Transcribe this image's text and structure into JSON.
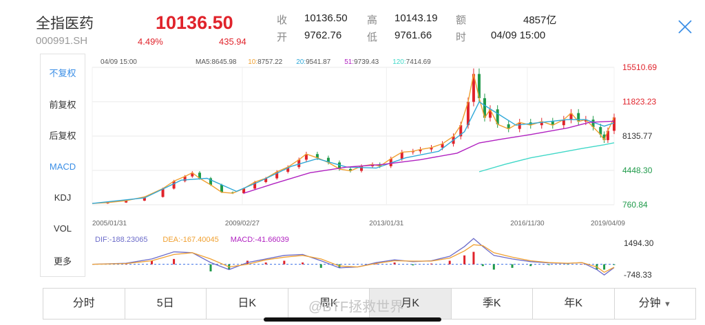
{
  "header": {
    "name": "全指医药",
    "code": "000991.SH",
    "price": "10136.50",
    "pct": "4.49%",
    "change": "435.94",
    "fields": [
      {
        "label": "收",
        "value": "10136.50"
      },
      {
        "label": "高",
        "value": "10143.19"
      },
      {
        "label": "额",
        "value": "4857亿"
      },
      {
        "label": "开",
        "value": "9762.76"
      },
      {
        "label": "低",
        "value": "9761.66"
      },
      {
        "label": "时",
        "value": "04/09 15:00"
      }
    ]
  },
  "side_menu": [
    "不复权",
    "前复权",
    "后复权",
    "MACD",
    "KDJ",
    "VOL",
    "更多"
  ],
  "tabs": [
    "分时",
    "5日",
    "日K",
    "周K",
    "月K",
    "季K",
    "年K",
    "分钟"
  ],
  "watermark": "@BTF拯救世界",
  "colors": {
    "up": "#e0232b",
    "down": "#1f9a4a",
    "accent": "#3a8ee6",
    "ma5": "#6b6bc9",
    "ma10": "#f0a030",
    "ma20": "#2fa8d8",
    "ma51": "#b020c0",
    "ma120": "#40d8c8"
  },
  "chart_data": {
    "type": "line",
    "date_text": "04/09 15:00",
    "ma_legend": [
      {
        "label": "MA5:",
        "value": "8645.98",
        "color": "#555555"
      },
      {
        "label": "10:",
        "value": "8757.22",
        "color": "#f0a030"
      },
      {
        "label": "20:",
        "value": "9541.87",
        "color": "#2fa8d8"
      },
      {
        "label": "51:",
        "value": "9739.43",
        "color": "#b020c0"
      },
      {
        "label": "120:",
        "value": "7414.69",
        "color": "#40d8c8"
      }
    ],
    "y_ticks": [
      {
        "label": "15510.69",
        "value": 15510.69,
        "color": "#e0232b"
      },
      {
        "label": "11823.23",
        "value": 11823.23,
        "color": "#e0232b"
      },
      {
        "label": "8135.77",
        "value": 8135.77,
        "color": "#333333"
      },
      {
        "label": "4448.30",
        "value": 4448.3,
        "color": "#1f9a4a"
      },
      {
        "label": "760.84",
        "value": 760.84,
        "color": "#1f9a4a"
      }
    ],
    "ylim": [
      760.84,
      15510.69
    ],
    "xlim": [
      2005.08,
      2019.27
    ],
    "x_ticks": [
      {
        "label": "2005/01/31",
        "value": 2005.08
      },
      {
        "label": "2009/02/27",
        "value": 2009.16
      },
      {
        "label": "2013/01/31",
        "value": 2013.08
      },
      {
        "label": "2016/11/30",
        "value": 2016.91
      },
      {
        "label": "2019/04/09",
        "value": 2019.27
      }
    ],
    "price": {
      "x": [
        2005.08,
        2005.5,
        2006.0,
        2006.5,
        2007.0,
        2007.3,
        2007.6,
        2007.8,
        2008.0,
        2008.3,
        2008.6,
        2008.9,
        2009.2,
        2009.5,
        2009.8,
        2010.1,
        2010.4,
        2010.7,
        2010.9,
        2011.2,
        2011.5,
        2011.8,
        2012.1,
        2012.4,
        2012.7,
        2012.9,
        2013.2,
        2013.5,
        2013.8,
        2014.0,
        2014.3,
        2014.6,
        2014.9,
        2015.1,
        2015.3,
        2015.45,
        2015.6,
        2015.75,
        2015.9,
        2016.1,
        2016.4,
        2016.7,
        2017.0,
        2017.3,
        2017.6,
        2017.9,
        2018.1,
        2018.3,
        2018.5,
        2018.7,
        2018.9,
        2019.0,
        2019.1,
        2019.27
      ],
      "y": [
        900,
        1000,
        1200,
        1600,
        2500,
        3300,
        3800,
        4200,
        3600,
        2900,
        2100,
        2000,
        2500,
        3200,
        3600,
        4300,
        4800,
        5600,
        6200,
        5800,
        5300,
        4600,
        4400,
        4900,
        5100,
        4900,
        5700,
        6400,
        6500,
        6700,
        6900,
        7300,
        8100,
        9300,
        11800,
        14800,
        12200,
        10100,
        11000,
        9400,
        8900,
        9600,
        9300,
        9700,
        9300,
        9900,
        10600,
        9700,
        9900,
        9100,
        8300,
        7700,
        8700,
        10136
      ]
    },
    "ma20": {
      "x": [
        2005.08,
        2006.5,
        2007.5,
        2008.2,
        2009.0,
        2009.6,
        2010.5,
        2011.2,
        2012.0,
        2012.8,
        2013.6,
        2014.5,
        2015.2,
        2015.6,
        2016.0,
        2016.6,
        2017.3,
        2018.0,
        2018.5,
        2019.0,
        2019.27
      ],
      "y": [
        900,
        1500,
        3400,
        3600,
        2200,
        3200,
        4900,
        5700,
        4800,
        4700,
        5800,
        6500,
        8600,
        11800,
        10800,
        9300,
        9600,
        9900,
        9900,
        9200,
        9541
      ]
    },
    "ma51": {
      "x": [
        2009.2,
        2010.0,
        2011.0,
        2012.0,
        2013.0,
        2014.0,
        2015.0,
        2015.6,
        2016.2,
        2017.0,
        2018.0,
        2018.6,
        2019.27
      ],
      "y": [
        2000,
        3000,
        4200,
        4800,
        5100,
        5600,
        6300,
        7400,
        7800,
        8300,
        9000,
        9600,
        9739
      ]
    },
    "ma120": {
      "x": [
        2015.6,
        2016.3,
        2017.0,
        2017.7,
        2018.4,
        2019.0,
        2019.27
      ],
      "y": [
        4300,
        5100,
        5800,
        6300,
        6800,
        7200,
        7414
      ]
    },
    "macd": {
      "legend": [
        {
          "label": "DIF:",
          "value": "-188.23065",
          "color": "#6b6bc9"
        },
        {
          "label": "DEA:",
          "value": "-167.40045",
          "color": "#f0a030"
        },
        {
          "label": "MACD:",
          "value": "-41.66039",
          "color": "#b020c0"
        }
      ],
      "y_ticks": [
        {
          "label": "1494.30",
          "value": 1494.3
        },
        {
          "label": "-748.33",
          "value": -748.33
        }
      ],
      "ylim": [
        -748.33,
        1494.3
      ],
      "x": [
        2005.08,
        2006.0,
        2006.7,
        2007.3,
        2007.8,
        2008.3,
        2008.8,
        2009.3,
        2009.8,
        2010.3,
        2010.8,
        2011.3,
        2011.8,
        2012.3,
        2012.8,
        2013.3,
        2013.8,
        2014.3,
        2014.8,
        2015.2,
        2015.45,
        2015.7,
        2016.0,
        2016.5,
        2017.0,
        2017.5,
        2018.0,
        2018.4,
        2018.8,
        2019.0,
        2019.27
      ],
      "dif": [
        0,
        60,
        300,
        700,
        650,
        100,
        -300,
        100,
        300,
        500,
        550,
        200,
        -200,
        -150,
        100,
        250,
        150,
        200,
        450,
        1000,
        1450,
        1000,
        500,
        300,
        150,
        80,
        50,
        100,
        -300,
        -600,
        -188
      ],
      "dea": [
        0,
        40,
        200,
        550,
        650,
        300,
        -150,
        0,
        250,
        400,
        500,
        300,
        -100,
        -150,
        50,
        200,
        180,
        180,
        350,
        750,
        1100,
        1050,
        650,
        400,
        200,
        100,
        60,
        90,
        -150,
        -450,
        -167
      ],
      "bars": [
        0,
        40,
        200,
        300,
        0,
        -400,
        -300,
        200,
        100,
        200,
        100,
        -200,
        -200,
        0,
        100,
        100,
        -60,
        40,
        200,
        500,
        700,
        -100,
        -300,
        -200,
        -100,
        -40,
        -20,
        20,
        -300,
        -300,
        -42
      ]
    }
  }
}
